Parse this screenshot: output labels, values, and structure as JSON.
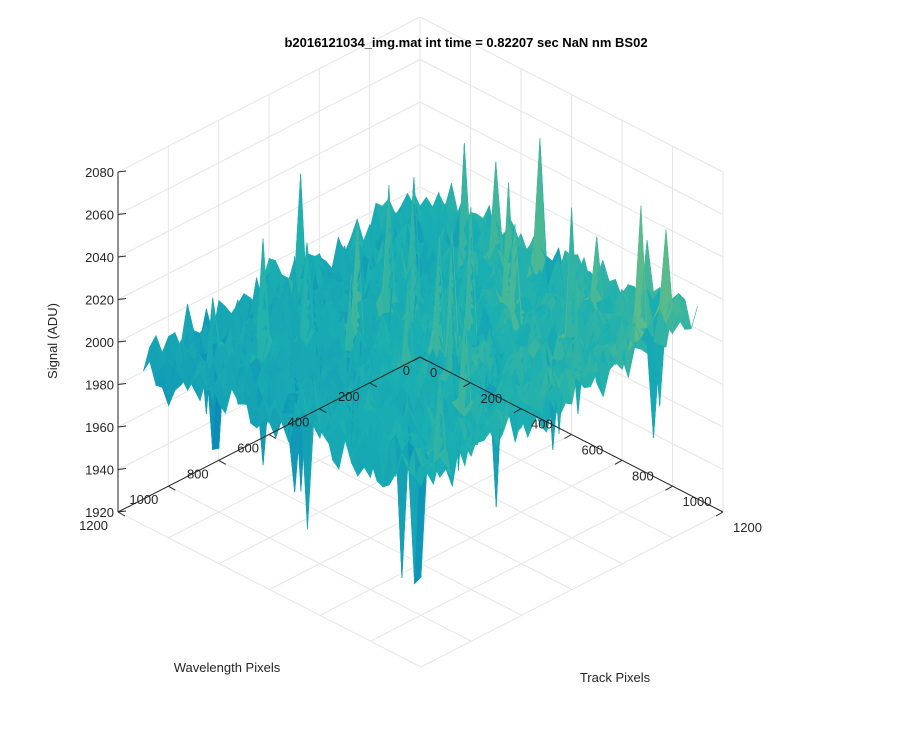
{
  "chart_data": {
    "type": "surface",
    "title": "b2016121034_img.mat int time = 0.82207 sec  NaN nm BS02",
    "xlabel": "Track Pixels",
    "ylabel": "Wavelength Pixels",
    "zlabel": "Signal (ADU)",
    "xlim": [
      0,
      1200
    ],
    "ylim": [
      0,
      1200
    ],
    "zlim": [
      1920,
      2080
    ],
    "x_ticks": [
      {
        "value": 0,
        "label": "0"
      },
      {
        "value": 200,
        "label": "200"
      },
      {
        "value": 400,
        "label": "400"
      },
      {
        "value": 600,
        "label": "600"
      },
      {
        "value": 800,
        "label": "800"
      },
      {
        "value": 1000,
        "label": "1000"
      },
      {
        "value": 1200,
        "label": "1200"
      }
    ],
    "y_ticks": [
      {
        "value": 0,
        "label": "0"
      },
      {
        "value": 200,
        "label": "200"
      },
      {
        "value": 400,
        "label": "400"
      },
      {
        "value": 600,
        "label": "600"
      },
      {
        "value": 800,
        "label": "800"
      },
      {
        "value": 1000,
        "label": "1000"
      },
      {
        "value": 1200,
        "label": "1200"
      }
    ],
    "z_ticks": [
      {
        "value": 1920,
        "label": "1920"
      },
      {
        "value": 1940,
        "label": "1940"
      },
      {
        "value": 1960,
        "label": "1960"
      },
      {
        "value": 1980,
        "label": "1980"
      },
      {
        "value": 2000,
        "label": "2000"
      },
      {
        "value": 2020,
        "label": "2020"
      },
      {
        "value": 2040,
        "label": "2040"
      },
      {
        "value": 2060,
        "label": "2060"
      },
      {
        "value": 2080,
        "label": "2080"
      }
    ],
    "x_range": [
      1,
      1100
    ],
    "y_range": [
      1,
      1100
    ],
    "signal_mean": 1995,
    "signal_min": 1935,
    "signal_max": 2060,
    "grid": true,
    "colormap": "parula",
    "colors": {
      "low": "#0072BD",
      "mid": "#1AAFB2",
      "high": "#DDD33E",
      "grid": "#E5E5E5",
      "axis": "#262626"
    }
  }
}
